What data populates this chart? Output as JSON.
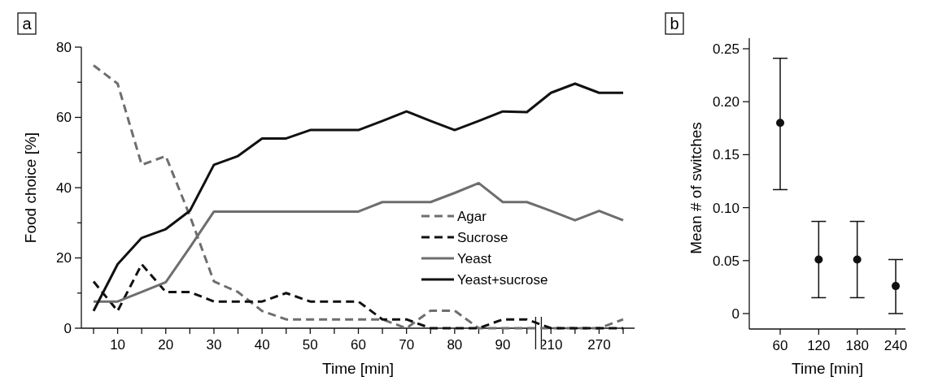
{
  "chart_data": [
    {
      "type": "line",
      "title": "a",
      "xlabel": "Time [min]",
      "ylabel": "Food choice [%]",
      "categories": [
        null,
        "10",
        null,
        "20",
        null,
        "30",
        null,
        "40",
        null,
        "50",
        null,
        "60",
        null,
        "70",
        null,
        "80",
        null,
        "90",
        null,
        "210",
        null,
        "270",
        null
      ],
      "ylim": [
        0,
        80
      ],
      "yticks": [
        0,
        {
          "value": 10,
          "label": null
        },
        20,
        {
          "value": 30,
          "label": null
        },
        40,
        {
          "value": 50,
          "label": null
        },
        60,
        {
          "value": 70,
          "label": null
        },
        80
      ],
      "legend": "bottom right",
      "grid": false,
      "series": [
        {
          "name": "Agar",
          "color": "#6e6e6e",
          "line_style": "dashed",
          "values": [
            74.8,
            69.6,
            46.5,
            49,
            32,
            13.3,
            10.3,
            4.9,
            2.5,
            2.5,
            2.5,
            2.5,
            2.5,
            0,
            5,
            5,
            0,
            0,
            0,
            0,
            0,
            0,
            2.5
          ]
        },
        {
          "name": "Sucrose",
          "color": "#111111",
          "line_style": "dashed",
          "values": [
            13.3,
            4.9,
            18.2,
            10.3,
            10.3,
            7.6,
            7.6,
            7.6,
            10,
            7.6,
            7.6,
            7.6,
            2.5,
            2.5,
            0,
            0,
            0,
            2.5,
            2.5,
            0,
            0,
            0,
            0
          ]
        },
        {
          "name": "Yeast",
          "color": "#6e6e6e",
          "line_style": "solid",
          "values": [
            7.6,
            7.6,
            10.3,
            13.1,
            23,
            33.2,
            33.2,
            33.2,
            33.2,
            33.2,
            33.2,
            33.2,
            35.9,
            35.9,
            35.9,
            38.5,
            41.3,
            35.9,
            35.9,
            33.4,
            30.7,
            33.4,
            30.7
          ]
        },
        {
          "name": "Yeast+sucrose",
          "color": "#111111",
          "line_style": "solid",
          "values": [
            4.9,
            18.2,
            25.7,
            28.2,
            33.4,
            46.5,
            49,
            54,
            54,
            56.4,
            56.4,
            56.4,
            59,
            61.7,
            59,
            56.4,
            59,
            61.7,
            61.5,
            67,
            69.6,
            67,
            67
          ]
        }
      ]
    },
    {
      "type": "scatter",
      "title": "b",
      "xlabel": "Time [min]",
      "ylabel": "Mean # of switches",
      "categories": [
        "60",
        "120",
        "180",
        "240"
      ],
      "ylim": [
        -0.015,
        0.26
      ],
      "yticks": [
        0,
        0.05,
        {
          "value": 0.1,
          "label": "0.10"
        },
        0.15,
        {
          "value": 0.2,
          "label": "0.20"
        },
        0.25
      ],
      "marker": "circle",
      "grid": false,
      "legend": false,
      "series": [
        {
          "color": "#111111",
          "values": [
            0.18,
            0.051,
            0.051,
            0.026
          ],
          "errors": [
            [
              0.117,
              0.241
            ],
            [
              0.015,
              0.087
            ],
            [
              0.015,
              0.087
            ],
            [
              0,
              0.051
            ]
          ]
        }
      ]
    }
  ]
}
